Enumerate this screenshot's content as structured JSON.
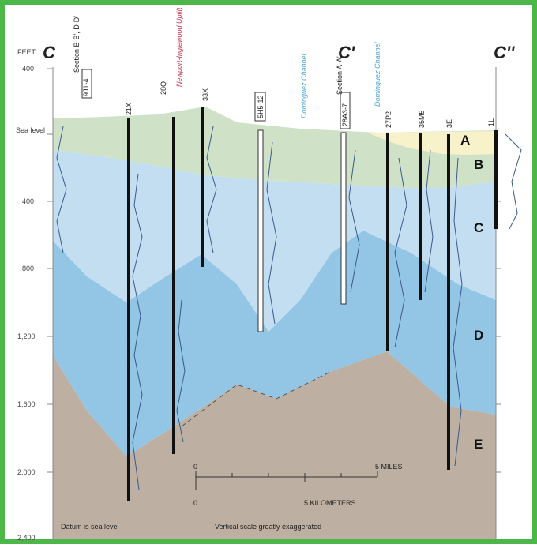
{
  "header": {
    "feet_label": "FEET",
    "section_labels": [
      "C",
      "C'",
      "C''"
    ]
  },
  "axis": {
    "labels": [
      "400",
      "Sea level",
      "400",
      "800",
      "1,200",
      "1,600",
      "2,000",
      "2,400"
    ]
  },
  "wells": [
    {
      "label": "9J1-4",
      "section": "Section B-B', D-D'"
    },
    {
      "label": "21X"
    },
    {
      "label": "28Q"
    },
    {
      "label": "33X"
    },
    {
      "label": "5H5-12"
    },
    {
      "label": "28A3-7",
      "section": "Section A-A'"
    },
    {
      "label": "27P2"
    },
    {
      "label": "35M5"
    },
    {
      "label": "3E"
    },
    {
      "label": "1L"
    }
  ],
  "annotations": {
    "uplift": "Newport-Inglewood Uplift",
    "channel_1": "Dominguez Channel",
    "channel_2": "Dominguez Channel"
  },
  "units": [
    "A",
    "B",
    "C",
    "D",
    "E"
  ],
  "scale": {
    "miles_zero": "0",
    "miles": "5 MILES",
    "km_zero": "0",
    "km": "5 KILOMETERS"
  },
  "footer": {
    "datum": "Datum is sea level",
    "note": "Vertical scale greatly exaggerated"
  }
}
